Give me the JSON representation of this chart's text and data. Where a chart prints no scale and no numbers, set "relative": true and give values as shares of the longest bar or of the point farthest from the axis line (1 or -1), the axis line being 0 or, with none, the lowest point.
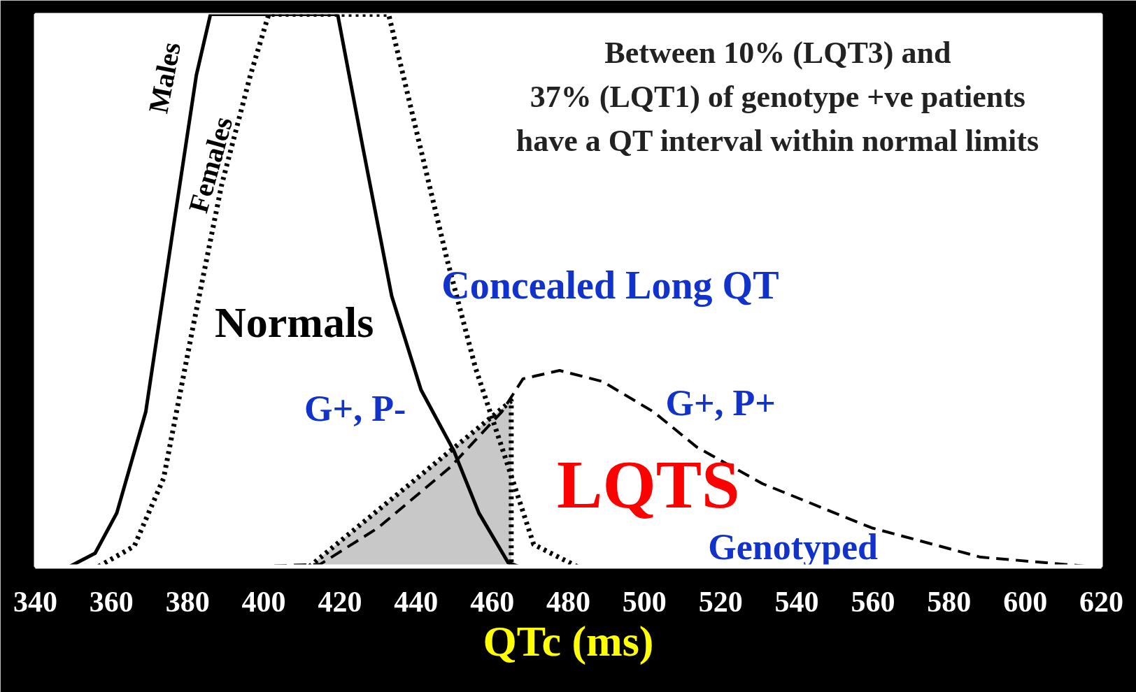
{
  "chart_data": {
    "type": "line",
    "relative": true,
    "xlabel": "QTc (ms)",
    "xlim": [
      340,
      620
    ],
    "xticks": [
      340,
      360,
      380,
      400,
      420,
      440,
      460,
      480,
      500,
      520,
      540,
      560,
      580,
      600,
      620
    ],
    "grid": false,
    "series": [
      {
        "name": "Males",
        "color": "#000000",
        "line_style": "solid",
        "x": [
          349,
          355.7,
          361.4,
          369,
          376.6,
          382.3,
          386,
          419.4,
          426,
          433.6,
          441.3,
          449.9,
          456.5,
          464.2,
          467
        ],
        "values": [
          0,
          0.024,
          0.097,
          0.28,
          0.63,
          0.89,
          1,
          1,
          0.76,
          0.49,
          0.32,
          0.21,
          0.097,
          0.007,
          0
        ]
      },
      {
        "name": "Females",
        "color": "#000000",
        "line_style": "dotted",
        "x": [
          356.6,
          366,
          373.7,
          381.3,
          388.9,
          396.5,
          401.3,
          432.8,
          440.4,
          448,
          455.6,
          463.3,
          470.9,
          482.3
        ],
        "values": [
          0,
          0.037,
          0.16,
          0.43,
          0.69,
          0.89,
          1,
          1,
          0.78,
          0.56,
          0.36,
          0.2,
          0.04,
          0
        ]
      },
      {
        "color": "#000000",
        "line_style": "dashed",
        "x": [
          397.6,
          414.8,
          430,
          449,
          462.5,
          468.1,
          477.7,
          489,
          502.4,
          513.8,
          531,
          559.7,
          588.3,
          617
        ],
        "values": [
          0,
          0.004,
          0.07,
          0.18,
          0.28,
          0.34,
          0.355,
          0.335,
          0.28,
          0.216,
          0.15,
          0.07,
          0.017,
          0
        ]
      },
      {
        "type": "area",
        "color": "#c8c8c8",
        "line_style": "dotted",
        "x": [
          412,
          465,
          465
        ],
        "values": [
          0,
          0.3,
          0
        ]
      }
    ],
    "annotations": [
      "Between 10% (LQT3) and",
      "37% (LQT1) of genotype +ve patients",
      "have a QT interval within normal limits",
      "Normals",
      "Concealed Long QT",
      "G+, P-",
      "G+, P+",
      "LQTS",
      "Genotyped"
    ]
  }
}
